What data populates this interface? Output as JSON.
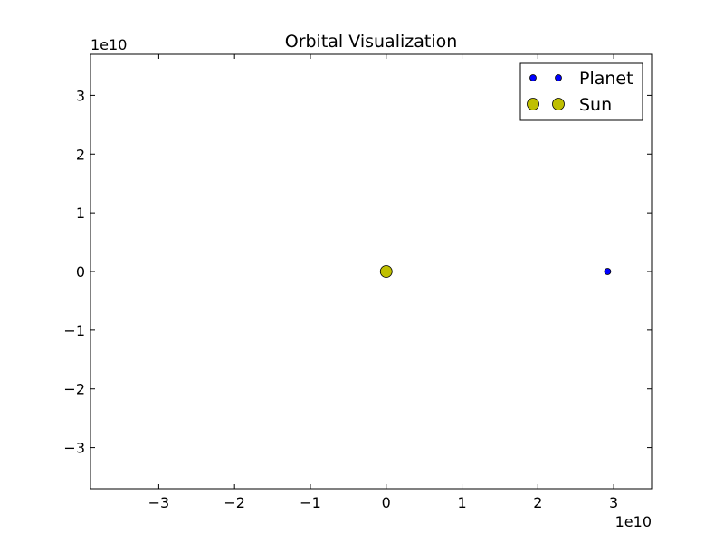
{
  "chart_data": {
    "type": "scatter",
    "title": "Orbital Visualization",
    "xlabel": "",
    "ylabel": "",
    "x_offset_label": "1e10",
    "y_offset_label": "1e10",
    "xlim": [
      -39000000000.0,
      35000000000.0
    ],
    "ylim": [
      -37000000000.0,
      37000000000.0
    ],
    "x_ticks": [
      -30000000000.0,
      -20000000000.0,
      -10000000000.0,
      0,
      10000000000.0,
      20000000000.0,
      30000000000.0
    ],
    "x_tick_labels": [
      "−3",
      "−2",
      "−1",
      "0",
      "1",
      "2",
      "3"
    ],
    "y_ticks": [
      30000000000.0,
      20000000000.0,
      10000000000.0,
      0,
      -10000000000.0,
      -20000000000.0,
      -30000000000.0
    ],
    "y_tick_labels": [
      "3",
      "2",
      "1",
      "0",
      "−1",
      "−2",
      "−3"
    ],
    "grid": false,
    "legend_position": "top-right",
    "series": [
      {
        "name": "Planet",
        "color": "#0000ff",
        "marker": "small-circle",
        "points": [
          {
            "x": 29200000000.0,
            "y": 0
          }
        ]
      },
      {
        "name": "Sun",
        "color": "#bfbf00",
        "marker": "large-circle",
        "points": [
          {
            "x": 0,
            "y": 0
          }
        ]
      }
    ]
  }
}
